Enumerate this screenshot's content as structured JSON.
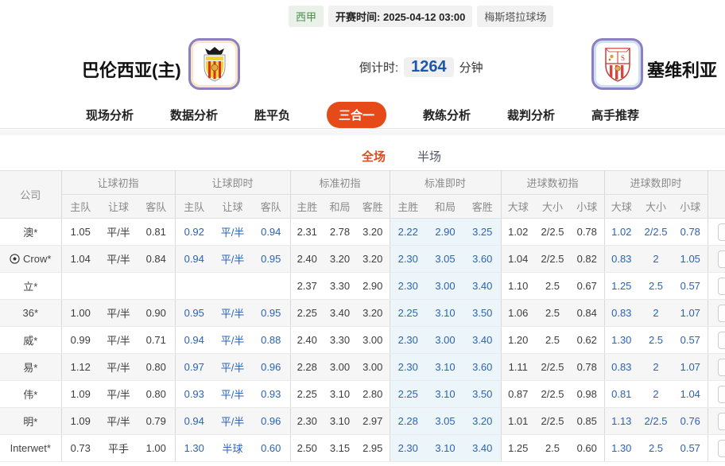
{
  "colors": {
    "accent_orange": "#e64a19",
    "live_blue": "#2b62ba",
    "countdown_blue": "#1d56ae",
    "league_green": "#4d8b4d",
    "live_standard_bg": "#ecf6fa"
  },
  "meta": {
    "league": "西甲",
    "kickoff_label": "开赛时间:",
    "kickoff_time": "2025-04-12 03:00",
    "venue": "梅斯塔拉球场"
  },
  "match": {
    "home_name": "巴伦西亚(主)",
    "away_name": "塞维利亚",
    "home_crest": "valencia-crest",
    "away_crest": "sevilla-crest",
    "countdown_label": "倒计时:",
    "countdown_value": "1264",
    "countdown_unit": "分钟"
  },
  "nav": {
    "tabs": [
      {
        "label": "现场分析",
        "active": false
      },
      {
        "label": "数据分析",
        "active": false
      },
      {
        "label": "胜平负",
        "active": false
      },
      {
        "label": "三合一",
        "active": true
      },
      {
        "label": "教练分析",
        "active": false
      },
      {
        "label": "裁判分析",
        "active": false
      },
      {
        "label": "高手推荐",
        "active": false
      }
    ]
  },
  "period_tabs": [
    {
      "label": "全场",
      "active": true
    },
    {
      "label": "半场",
      "active": false
    }
  ],
  "table": {
    "company_header": "公司",
    "groups": [
      {
        "label": "让球初指",
        "cols": [
          "主队",
          "让球",
          "客队"
        ]
      },
      {
        "label": "让球即时",
        "cols": [
          "主队",
          "让球",
          "客队"
        ]
      },
      {
        "label": "标准初指",
        "cols": [
          "主胜",
          "和局",
          "客胜"
        ]
      },
      {
        "label": "标准即时",
        "cols": [
          "主胜",
          "和局",
          "客胜"
        ]
      },
      {
        "label": "进球数初指",
        "cols": [
          "大球",
          "大小",
          "小球"
        ]
      },
      {
        "label": "进球数即时",
        "cols": [
          "大球",
          "大小",
          "小球"
        ]
      }
    ],
    "rows": [
      {
        "company": "澳*",
        "icon": null,
        "cells": [
          "1.05",
          "平/半",
          "0.81",
          "0.92",
          "平/半",
          "0.94",
          "2.31",
          "2.78",
          "3.20",
          "2.22",
          "2.90",
          "3.25",
          "1.02",
          "2/2.5",
          "0.78",
          "1.02",
          "2/2.5",
          "0.78"
        ]
      },
      {
        "company": "Crow*",
        "icon": "soccer-ball",
        "cells": [
          "1.04",
          "平/半",
          "0.84",
          "0.94",
          "平/半",
          "0.95",
          "2.40",
          "3.20",
          "3.20",
          "2.30",
          "3.05",
          "3.60",
          "1.04",
          "2/2.5",
          "0.82",
          "0.83",
          "2",
          "1.05"
        ]
      },
      {
        "company": "立*",
        "icon": null,
        "cells": [
          "",
          "",
          "",
          "",
          "",
          "",
          "2.37",
          "3.30",
          "2.90",
          "2.30",
          "3.00",
          "3.40",
          "1.10",
          "2.5",
          "0.67",
          "1.25",
          "2.5",
          "0.57"
        ]
      },
      {
        "company": "36*",
        "icon": null,
        "cells": [
          "1.00",
          "平/半",
          "0.90",
          "0.95",
          "平/半",
          "0.95",
          "2.25",
          "3.40",
          "3.20",
          "2.25",
          "3.10",
          "3.50",
          "1.06",
          "2.5",
          "0.84",
          "0.83",
          "2",
          "1.07"
        ]
      },
      {
        "company": "威*",
        "icon": null,
        "cells": [
          "0.99",
          "平/半",
          "0.71",
          "0.94",
          "平/半",
          "0.88",
          "2.40",
          "3.30",
          "3.00",
          "2.30",
          "3.00",
          "3.40",
          "1.20",
          "2.5",
          "0.62",
          "1.30",
          "2.5",
          "0.57"
        ]
      },
      {
        "company": "易*",
        "icon": null,
        "cells": [
          "1.12",
          "平/半",
          "0.80",
          "0.97",
          "平/半",
          "0.96",
          "2.28",
          "3.00",
          "3.00",
          "2.30",
          "3.10",
          "3.60",
          "1.11",
          "2/2.5",
          "0.78",
          "0.83",
          "2",
          "1.07"
        ]
      },
      {
        "company": "伟*",
        "icon": null,
        "cells": [
          "1.09",
          "平/半",
          "0.80",
          "0.93",
          "平/半",
          "0.93",
          "2.25",
          "3.10",
          "2.80",
          "2.25",
          "3.10",
          "3.50",
          "0.87",
          "2/2.5",
          "0.98",
          "0.81",
          "2",
          "1.04"
        ]
      },
      {
        "company": "明*",
        "icon": null,
        "cells": [
          "1.09",
          "平/半",
          "0.79",
          "0.94",
          "平/半",
          "0.96",
          "2.30",
          "3.10",
          "2.97",
          "2.28",
          "3.05",
          "3.20",
          "1.01",
          "2/2.5",
          "0.85",
          "1.13",
          "2/2.5",
          "0.76"
        ]
      },
      {
        "company": "Interwet*",
        "icon": null,
        "cells": [
          "0.73",
          "平手",
          "1.00",
          "1.30",
          "半球",
          "0.60",
          "2.50",
          "3.15",
          "2.95",
          "2.30",
          "3.10",
          "3.40",
          "1.25",
          "2.5",
          "0.60",
          "1.30",
          "2.5",
          "0.57"
        ]
      }
    ]
  }
}
